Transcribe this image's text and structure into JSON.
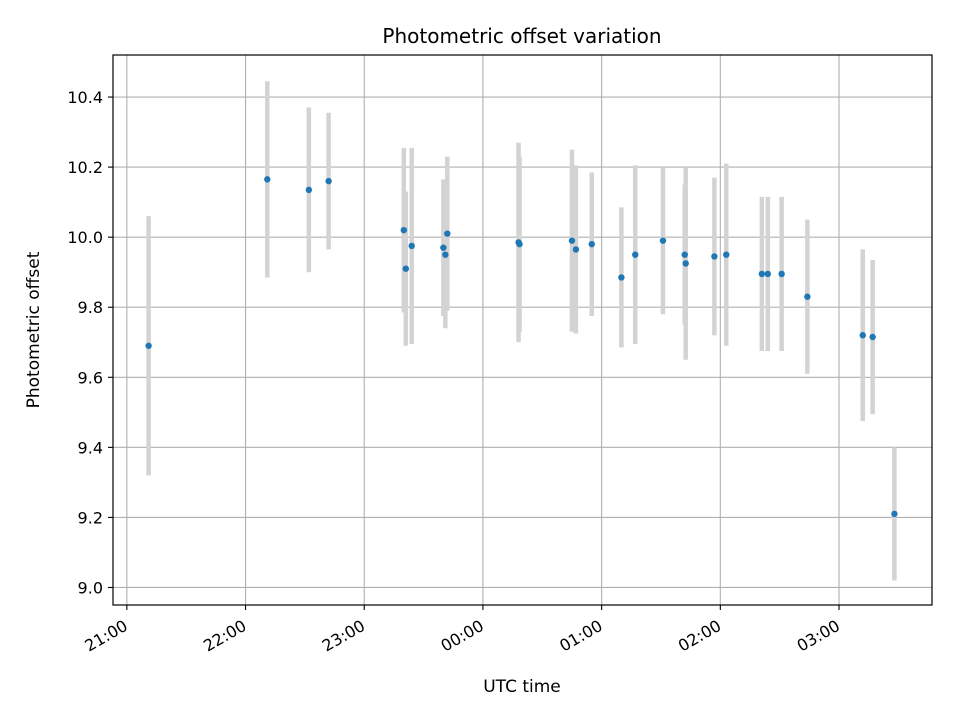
{
  "chart_data": {
    "type": "scatter",
    "title": "Photometric offset variation",
    "xlabel": "UTC time",
    "ylabel": "Photometric offset",
    "grid": true,
    "xlim": [
      "2024-01-01T20:53:00",
      "2024-01-02T03:47:00"
    ],
    "ylim": [
      8.95,
      10.52
    ],
    "x_ticks": [
      {
        "t": "2024-01-01T21:00:00",
        "label": "21:00"
      },
      {
        "t": "2024-01-01T22:00:00",
        "label": "22:00"
      },
      {
        "t": "2024-01-01T23:00:00",
        "label": "23:00"
      },
      {
        "t": "2024-01-02T00:00:00",
        "label": "00:00"
      },
      {
        "t": "2024-01-02T01:00:00",
        "label": "01:00"
      },
      {
        "t": "2024-01-02T02:00:00",
        "label": "02:00"
      },
      {
        "t": "2024-01-02T03:00:00",
        "label": "03:00"
      }
    ],
    "y_ticks": [
      {
        "v": 9.0,
        "label": "9.0"
      },
      {
        "v": 9.2,
        "label": "9.2"
      },
      {
        "v": 9.4,
        "label": "9.4"
      },
      {
        "v": 9.6,
        "label": "9.6"
      },
      {
        "v": 9.8,
        "label": "9.8"
      },
      {
        "v": 10.0,
        "label": "10.0"
      },
      {
        "v": 10.2,
        "label": "10.2"
      },
      {
        "v": 10.4,
        "label": "10.4"
      }
    ],
    "colors": {
      "points": "#1f77b4",
      "errorbars": "#d3d3d3",
      "grid": "#b0b0b0"
    },
    "points": [
      {
        "t": "2024-01-01T21:11:00",
        "y": 9.69,
        "err": 0.37
      },
      {
        "t": "2024-01-01T22:11:00",
        "y": 10.165,
        "err": 0.28
      },
      {
        "t": "2024-01-01T22:32:00",
        "y": 10.135,
        "err": 0.235
      },
      {
        "t": "2024-01-01T22:42:00",
        "y": 10.16,
        "err": 0.195
      },
      {
        "t": "2024-01-01T23:20:00",
        "y": 10.02,
        "err": 0.235
      },
      {
        "t": "2024-01-01T23:21:00",
        "y": 9.91,
        "err": 0.22
      },
      {
        "t": "2024-01-01T23:24:00",
        "y": 9.975,
        "err": 0.28
      },
      {
        "t": "2024-01-01T23:40:00",
        "y": 9.97,
        "err": 0.195
      },
      {
        "t": "2024-01-01T23:41:00",
        "y": 9.95,
        "err": 0.21
      },
      {
        "t": "2024-01-01T23:42:00",
        "y": 10.01,
        "err": 0.22
      },
      {
        "t": "2024-01-02T00:18:00",
        "y": 9.985,
        "err": 0.285
      },
      {
        "t": "2024-01-02T00:18:30",
        "y": 9.98,
        "err": 0.25
      },
      {
        "t": "2024-01-02T00:45:00",
        "y": 9.99,
        "err": 0.26
      },
      {
        "t": "2024-01-02T00:47:00",
        "y": 9.965,
        "err": 0.24
      },
      {
        "t": "2024-01-02T00:55:00",
        "y": 9.98,
        "err": 0.205
      },
      {
        "t": "2024-01-02T01:10:00",
        "y": 9.885,
        "err": 0.2
      },
      {
        "t": "2024-01-02T01:17:00",
        "y": 9.95,
        "err": 0.255
      },
      {
        "t": "2024-01-02T01:31:00",
        "y": 9.99,
        "err": 0.21
      },
      {
        "t": "2024-01-02T01:42:00",
        "y": 9.95,
        "err": 0.2
      },
      {
        "t": "2024-01-02T01:42:30",
        "y": 9.925,
        "err": 0.275
      },
      {
        "t": "2024-01-02T01:57:00",
        "y": 9.945,
        "err": 0.225
      },
      {
        "t": "2024-01-02T02:03:00",
        "y": 9.95,
        "err": 0.26
      },
      {
        "t": "2024-01-02T02:21:00",
        "y": 9.895,
        "err": 0.22
      },
      {
        "t": "2024-01-02T02:24:00",
        "y": 9.895,
        "err": 0.22
      },
      {
        "t": "2024-01-02T02:31:00",
        "y": 9.895,
        "err": 0.22
      },
      {
        "t": "2024-01-02T02:44:00",
        "y": 9.83,
        "err": 0.22
      },
      {
        "t": "2024-01-02T03:12:00",
        "y": 9.72,
        "err": 0.245
      },
      {
        "t": "2024-01-02T03:17:00",
        "y": 9.715,
        "err": 0.22
      },
      {
        "t": "2024-01-02T03:28:00",
        "y": 9.21,
        "err": 0.19
      }
    ]
  }
}
